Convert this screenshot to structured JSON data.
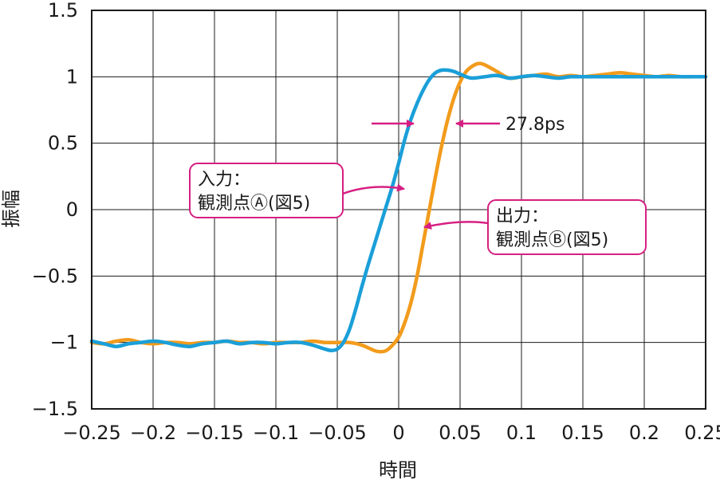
{
  "chart_data": {
    "type": "line",
    "xlabel": "時間",
    "ylabel": "振幅",
    "xlim": [
      -0.25,
      0.25
    ],
    "ylim": [
      -1.5,
      1.5
    ],
    "x_ticks": [
      -0.25,
      -0.2,
      -0.15,
      -0.1,
      -0.05,
      0,
      0.05,
      0.1,
      0.15,
      0.2,
      0.25
    ],
    "x_tick_labels": [
      "−0.25",
      "−0.2",
      "−0.15",
      "−0.1",
      "−0.05",
      "0",
      "0.05",
      "0.1",
      "0.15",
      "0.2",
      "0.25"
    ],
    "y_ticks": [
      1.5,
      1,
      0.5,
      0,
      -0.5,
      -1,
      -1.5
    ],
    "y_tick_labels": [
      "1.5",
      "1",
      "0.5",
      "0",
      "−0.5",
      "−1",
      "−1.5"
    ],
    "grid": true,
    "series": [
      {
        "color": "#f29b1c",
        "x": [
          -0.25,
          -0.24,
          -0.23,
          -0.22,
          -0.21,
          -0.2,
          -0.19,
          -0.18,
          -0.17,
          -0.16,
          -0.15,
          -0.14,
          -0.13,
          -0.12,
          -0.11,
          -0.1,
          -0.09,
          -0.08,
          -0.07,
          -0.06,
          -0.05,
          -0.04,
          -0.03,
          -0.02,
          -0.015,
          -0.01,
          -0.005,
          0,
          0.005,
          0.01,
          0.015,
          0.02,
          0.025,
          0.03,
          0.035,
          0.04,
          0.045,
          0.05,
          0.055,
          0.06,
          0.065,
          0.07,
          0.08,
          0.09,
          0.1,
          0.11,
          0.12,
          0.13,
          0.14,
          0.15,
          0.16,
          0.17,
          0.18,
          0.19,
          0.2,
          0.21,
          0.22,
          0.23,
          0.24,
          0.25
        ],
        "y": [
          -1.0,
          -1.01,
          -0.99,
          -0.98,
          -1.0,
          -1.01,
          -1.0,
          -1.0,
          -1.01,
          -1.0,
          -1.0,
          -0.99,
          -1.0,
          -1.0,
          -1.01,
          -1.0,
          -1.0,
          -1.0,
          -0.99,
          -1.0,
          -1.0,
          -1.0,
          -1.02,
          -1.06,
          -1.07,
          -1.06,
          -1.02,
          -0.96,
          -0.85,
          -0.7,
          -0.5,
          -0.25,
          0.0,
          0.25,
          0.48,
          0.68,
          0.84,
          0.96,
          1.04,
          1.08,
          1.1,
          1.09,
          1.04,
          0.99,
          1.0,
          1.01,
          1.02,
          1.0,
          1.01,
          1.0,
          1.01,
          1.02,
          1.03,
          1.02,
          1.01,
          1.0,
          1.01,
          1.0,
          1.0,
          1.0
        ]
      },
      {
        "color": "#1a9fd9",
        "x": [
          -0.25,
          -0.24,
          -0.23,
          -0.22,
          -0.21,
          -0.2,
          -0.19,
          -0.18,
          -0.17,
          -0.16,
          -0.15,
          -0.14,
          -0.13,
          -0.12,
          -0.11,
          -0.1,
          -0.09,
          -0.08,
          -0.07,
          -0.06,
          -0.055,
          -0.05,
          -0.045,
          -0.04,
          -0.035,
          -0.03,
          -0.025,
          -0.02,
          -0.015,
          -0.01,
          -0.005,
          0,
          0.005,
          0.01,
          0.015,
          0.02,
          0.025,
          0.03,
          0.035,
          0.04,
          0.045,
          0.05,
          0.055,
          0.06,
          0.07,
          0.08,
          0.09,
          0.1,
          0.11,
          0.12,
          0.13,
          0.14,
          0.15,
          0.16,
          0.17,
          0.18,
          0.19,
          0.2,
          0.21,
          0.22,
          0.23,
          0.24,
          0.25
        ],
        "y": [
          -0.99,
          -1.01,
          -1.03,
          -1.01,
          -1.0,
          -0.99,
          -1.0,
          -1.02,
          -1.03,
          -1.01,
          -1.0,
          -0.99,
          -1.01,
          -1.0,
          -1.0,
          -1.01,
          -1.0,
          -1.0,
          -1.02,
          -1.05,
          -1.06,
          -1.05,
          -1.0,
          -0.9,
          -0.75,
          -0.58,
          -0.42,
          -0.27,
          -0.12,
          0.03,
          0.18,
          0.35,
          0.53,
          0.68,
          0.8,
          0.9,
          0.98,
          1.03,
          1.05,
          1.05,
          1.04,
          1.02,
          1.0,
          0.99,
          1.0,
          1.01,
          0.99,
          1.0,
          1.01,
          1.0,
          0.99,
          1.0,
          1.0,
          1.0,
          1.0,
          1.0,
          1.0,
          1.0,
          1.0,
          1.0,
          1.0,
          1.0,
          1.0
        ]
      }
    ],
    "annotations": {
      "delay_label": "27.8ps",
      "input_label_line1": "入力：",
      "input_label_line2": "観測点Ⓐ(図5)",
      "output_label_line1": "出力：",
      "output_label_line2": "観測点Ⓑ(図5)"
    },
    "colors": {
      "annotation_accent": "#d61f82",
      "grid": "#1a1a1a"
    }
  }
}
